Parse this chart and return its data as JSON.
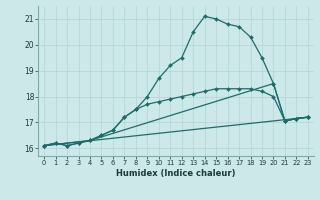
{
  "title": "",
  "xlabel": "Humidex (Indice chaleur)",
  "ylabel": "",
  "background_color": "#cce8e8",
  "line_color": "#1a6e6a",
  "xlim": [
    -0.5,
    23.5
  ],
  "ylim": [
    15.7,
    21.5
  ],
  "yticks": [
    16,
    17,
    18,
    19,
    20,
    21
  ],
  "xticks": [
    0,
    1,
    2,
    3,
    4,
    5,
    6,
    7,
    8,
    9,
    10,
    11,
    12,
    13,
    14,
    15,
    16,
    17,
    18,
    19,
    20,
    21,
    22,
    23
  ],
  "series": [
    {
      "x": [
        0,
        1,
        2,
        3,
        4,
        5,
        6,
        7,
        8,
        9,
        10,
        11,
        12,
        13,
        14,
        15,
        16,
        17,
        18,
        19,
        20,
        21,
        22,
        23
      ],
      "y": [
        16.1,
        16.2,
        16.1,
        16.2,
        16.3,
        16.5,
        16.7,
        17.2,
        17.5,
        18.0,
        18.7,
        19.2,
        19.5,
        20.5,
        21.1,
        21.0,
        20.8,
        20.7,
        20.3,
        19.5,
        18.5,
        17.05,
        17.15,
        17.2
      ]
    },
    {
      "x": [
        0,
        1,
        2,
        3,
        4,
        5,
        6,
        7,
        8,
        9,
        10,
        11,
        12,
        13,
        14,
        15,
        16,
        17,
        18,
        19,
        20,
        21,
        22,
        23
      ],
      "y": [
        16.1,
        16.2,
        16.1,
        16.2,
        16.3,
        16.5,
        16.7,
        17.2,
        17.5,
        17.7,
        17.8,
        17.9,
        18.0,
        18.1,
        18.2,
        18.3,
        18.3,
        18.3,
        18.3,
        18.2,
        18.0,
        17.05,
        17.15,
        17.2
      ]
    },
    {
      "x": [
        0,
        23
      ],
      "y": [
        16.1,
        17.2
      ]
    },
    {
      "x": [
        0,
        4,
        20,
        21,
        22,
        23
      ],
      "y": [
        16.1,
        16.3,
        18.5,
        17.05,
        17.15,
        17.2
      ]
    }
  ]
}
